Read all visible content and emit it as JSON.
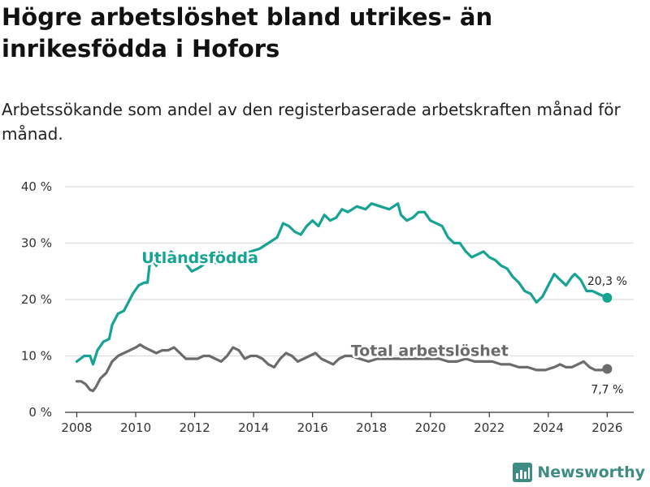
{
  "colors": {
    "foreign": "#16a394",
    "total": "#6b6b6b",
    "grid": "#dddddd",
    "brand": "#3e8c84"
  },
  "brand": {
    "name": "Newsworthy"
  },
  "chart_data": {
    "type": "line",
    "title": "Högre arbetslöshet bland utrikes- än inrikesfödda i Hofors",
    "subtitle": "Arbetssökande som andel av den registerbaserade arbetskraften månad för månad.",
    "xlabel": "",
    "ylabel": "",
    "xlim": [
      2007.6,
      2026.9
    ],
    "ylim": [
      0,
      40
    ],
    "x_ticks": [
      2008,
      2010,
      2012,
      2014,
      2016,
      2018,
      2020,
      2022,
      2024,
      2026
    ],
    "y_ticks": [
      0,
      10,
      20,
      30,
      40
    ],
    "y_tick_labels": [
      "0 %",
      "10 %",
      "20 %",
      "30 %",
      "40 %"
    ],
    "series": [
      {
        "name": "Utlandsfödda",
        "label": "Utlandsfödda",
        "end_label": "20,3 %",
        "color": "#16a394",
        "x": [
          2008.0,
          2008.25,
          2008.45,
          2008.55,
          2008.7,
          2008.9,
          2009.1,
          2009.2,
          2009.4,
          2009.6,
          2009.75,
          2009.9,
          2010.1,
          2010.3,
          2010.4,
          2010.5,
          2010.7,
          2010.85,
          2011.0,
          2011.2,
          2011.4,
          2011.6,
          2011.75,
          2011.9,
          2012.1,
          2012.4,
          2012.7,
          2013.0,
          2013.3,
          2013.6,
          2013.9,
          2014.2,
          2014.5,
          2014.8,
          2015.0,
          2015.2,
          2015.4,
          2015.6,
          2015.8,
          2016.0,
          2016.2,
          2016.4,
          2016.6,
          2016.8,
          2017.0,
          2017.2,
          2017.5,
          2017.8,
          2018.0,
          2018.3,
          2018.6,
          2018.9,
          2019.0,
          2019.2,
          2019.4,
          2019.6,
          2019.8,
          2020.0,
          2020.2,
          2020.4,
          2020.6,
          2020.8,
          2021.0,
          2021.2,
          2021.4,
          2021.6,
          2021.8,
          2022.0,
          2022.2,
          2022.4,
          2022.6,
          2022.8,
          2023.0,
          2023.2,
          2023.4,
          2023.6,
          2023.8,
          2024.0,
          2024.2,
          2024.4,
          2024.6,
          2024.8,
          2024.9,
          2025.1,
          2025.3,
          2025.5,
          2025.7,
          2026.0
        ],
        "y": [
          9.0,
          10.0,
          10.0,
          8.5,
          11.0,
          12.5,
          13.0,
          15.5,
          17.5,
          18.0,
          19.5,
          21.0,
          22.5,
          23.0,
          23.0,
          27.5,
          26.0,
          27.5,
          27.0,
          28.5,
          27.5,
          27.0,
          26.0,
          25.0,
          25.5,
          26.5,
          26.5,
          27.0,
          27.5,
          28.0,
          28.5,
          29.0,
          30.0,
          31.0,
          33.5,
          33.0,
          32.0,
          31.5,
          33.0,
          34.0,
          33.0,
          35.0,
          34.0,
          34.5,
          36.0,
          35.5,
          36.5,
          36.0,
          37.0,
          36.5,
          36.0,
          37.0,
          35.0,
          34.0,
          34.5,
          35.5,
          35.5,
          34.0,
          33.5,
          33.0,
          31.0,
          30.0,
          30.0,
          28.5,
          27.5,
          28.0,
          28.5,
          27.5,
          27.0,
          26.0,
          25.5,
          24.0,
          23.0,
          21.5,
          21.0,
          19.5,
          20.5,
          22.5,
          24.5,
          23.5,
          22.5,
          24.0,
          24.5,
          23.5,
          21.5,
          21.5,
          21.0,
          20.3
        ]
      },
      {
        "name": "Total arbetslöshet",
        "label": "Total arbetslöshet",
        "end_label": "7,7 %",
        "color": "#6b6b6b",
        "x": [
          2008.0,
          2008.15,
          2008.3,
          2008.45,
          2008.55,
          2008.65,
          2008.8,
          2009.0,
          2009.2,
          2009.4,
          2009.6,
          2009.8,
          2010.0,
          2010.15,
          2010.3,
          2010.5,
          2010.7,
          2010.9,
          2011.1,
          2011.3,
          2011.5,
          2011.7,
          2011.9,
          2012.1,
          2012.3,
          2012.5,
          2012.7,
          2012.9,
          2013.1,
          2013.3,
          2013.5,
          2013.7,
          2013.9,
          2014.1,
          2014.3,
          2014.5,
          2014.7,
          2014.9,
          2015.1,
          2015.3,
          2015.5,
          2015.7,
          2015.9,
          2016.1,
          2016.3,
          2016.5,
          2016.7,
          2016.9,
          2017.1,
          2017.3,
          2017.6,
          2017.9,
          2018.2,
          2018.5,
          2018.8,
          2019.1,
          2019.4,
          2019.7,
          2020.0,
          2020.3,
          2020.6,
          2020.9,
          2021.2,
          2021.5,
          2021.8,
          2022.1,
          2022.4,
          2022.7,
          2023.0,
          2023.3,
          2023.6,
          2023.9,
          2024.2,
          2024.4,
          2024.6,
          2024.8,
          2025.0,
          2025.2,
          2025.4,
          2025.6,
          2025.8,
          2026.0
        ],
        "y": [
          5.5,
          5.5,
          5.0,
          4.0,
          3.8,
          4.5,
          6.0,
          7.0,
          9.0,
          10.0,
          10.5,
          11.0,
          11.5,
          12.0,
          11.5,
          11.0,
          10.5,
          11.0,
          11.0,
          11.5,
          10.5,
          9.5,
          9.5,
          9.5,
          10.0,
          10.0,
          9.5,
          9.0,
          10.0,
          11.5,
          11.0,
          9.5,
          10.0,
          10.0,
          9.5,
          8.5,
          8.0,
          9.5,
          10.5,
          10.0,
          9.0,
          9.5,
          10.0,
          10.5,
          9.5,
          9.0,
          8.5,
          9.5,
          10.0,
          10.0,
          9.5,
          9.0,
          9.5,
          9.5,
          9.5,
          9.5,
          9.5,
          9.5,
          9.5,
          9.5,
          9.0,
          9.0,
          9.5,
          9.0,
          9.0,
          9.0,
          8.5,
          8.5,
          8.0,
          8.0,
          7.5,
          7.5,
          8.0,
          8.5,
          8.0,
          8.0,
          8.5,
          9.0,
          8.0,
          7.5,
          7.5,
          7.7
        ]
      }
    ]
  }
}
